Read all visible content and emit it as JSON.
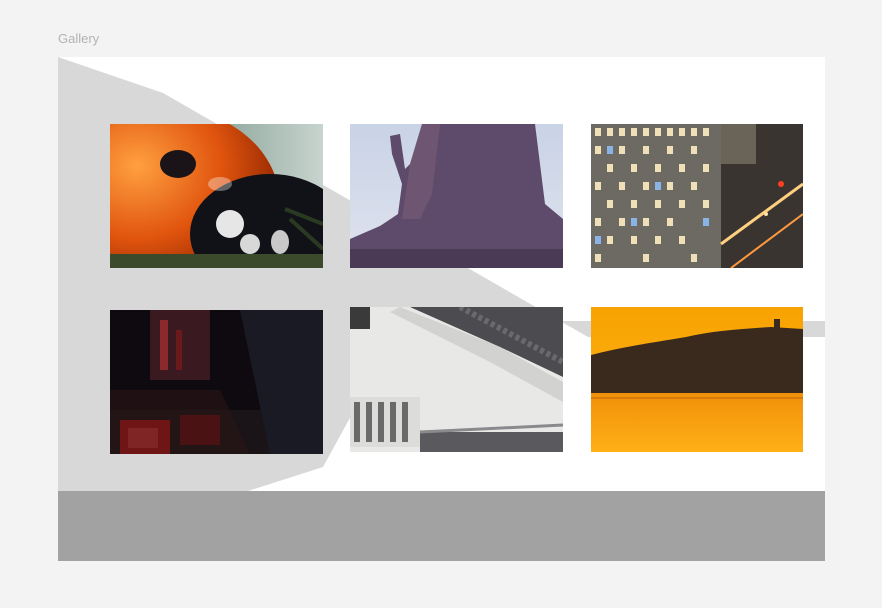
{
  "frame": {
    "title": "Gallery"
  },
  "gallery": {
    "images": [
      {
        "name": "ladybug"
      },
      {
        "name": "butte"
      },
      {
        "name": "city-night"
      },
      {
        "name": "red-machine"
      },
      {
        "name": "temple-roof"
      },
      {
        "name": "sunset-lake"
      }
    ]
  },
  "colors": {
    "background": "#f3f3f3",
    "canvas": "#ffffff",
    "wedge": "#d8d8d8",
    "bottom_bar": "#a2a2a2"
  }
}
